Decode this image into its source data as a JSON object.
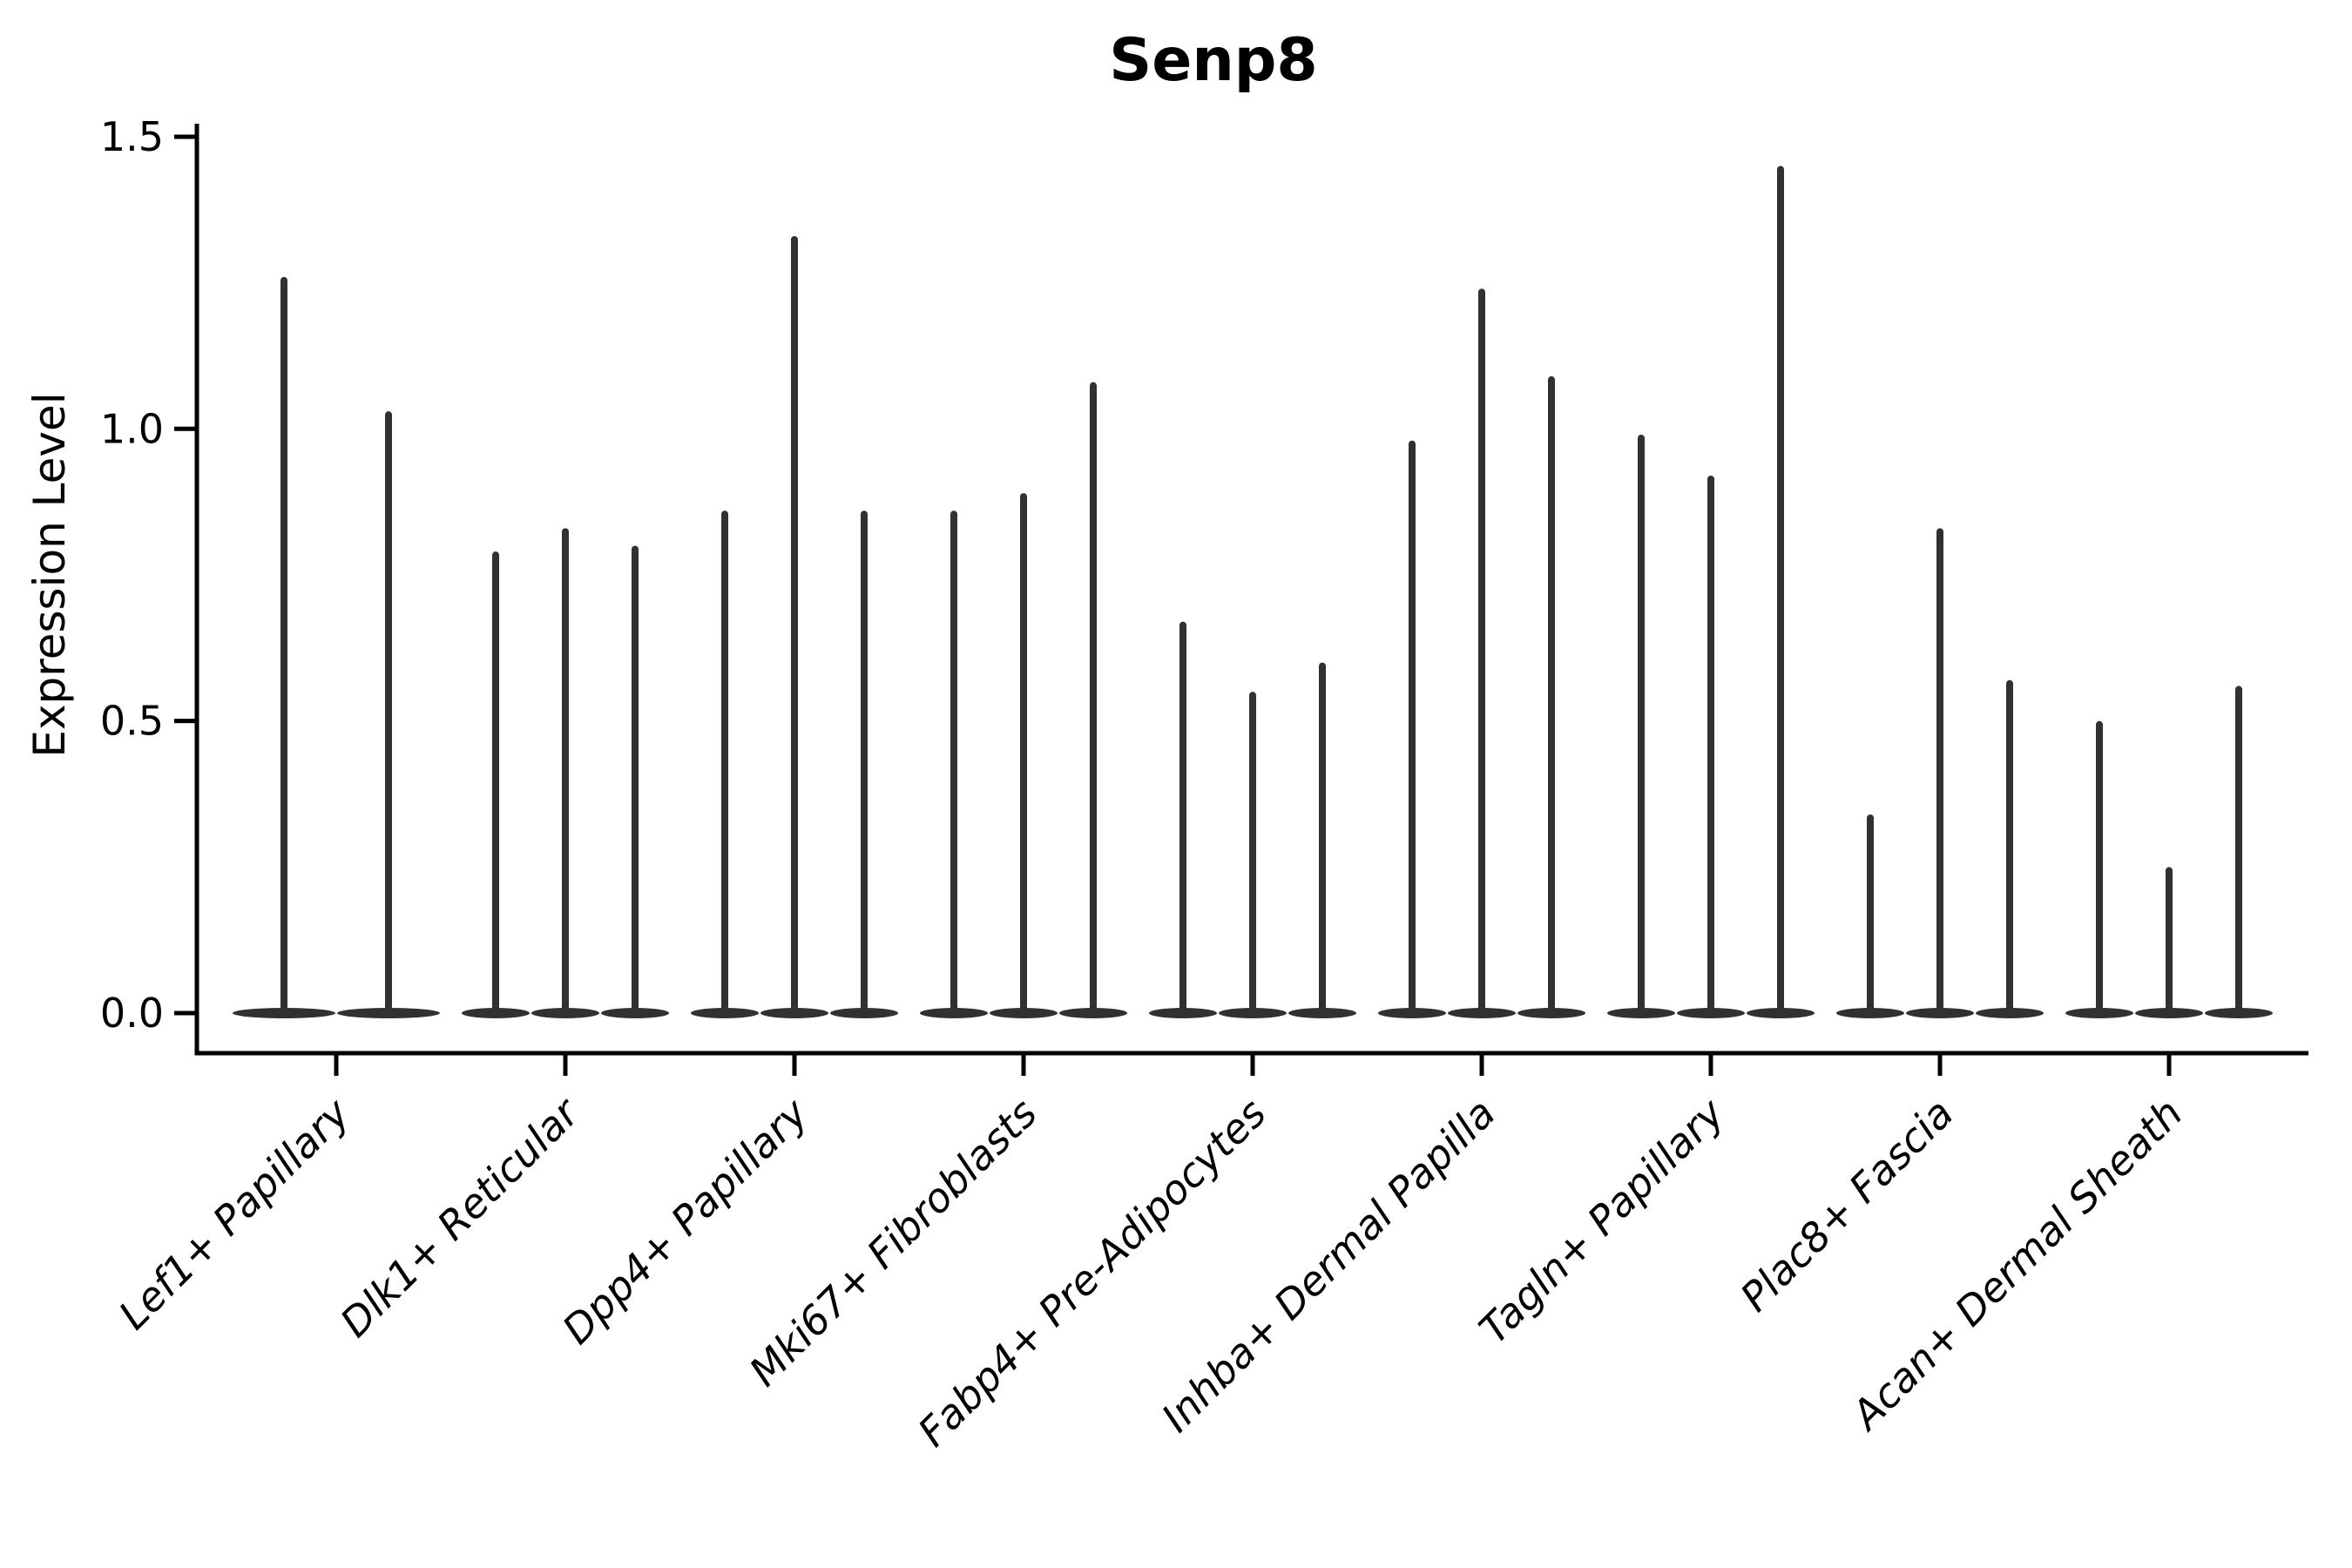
{
  "figure": {
    "title": "Senp8"
  },
  "chart_data": {
    "type": "violin",
    "title": "Senp8",
    "xlabel": "",
    "ylabel": "Expression Level",
    "yticks": [
      "0.0",
      "0.5",
      "1.0",
      "1.5"
    ],
    "ytick_values": [
      0.0,
      0.5,
      1.0,
      1.5
    ],
    "ylim": [
      -0.07,
      1.52
    ],
    "grid": false,
    "legend": "none",
    "style": "zero-inflated violins: wide flat density base at 0 with a thin spike up to the max expression value; 2-3 violins per cell-type category",
    "categories": [
      "Lef1+ Papillary",
      "Dlk1+ Reticular",
      "Dpp4+ Papillary",
      "Mki67+ Fibroblasts",
      "Fabp4+ Pre-Adipocytes",
      "Inhba+ Dermal Papilla",
      "Tagln+ Papillary",
      "Plac8+ Fascia",
      "Acan+ Dermal Sheath"
    ],
    "violin_max_values": [
      [
        1.26,
        1.03
      ],
      [
        0.79,
        0.83,
        0.8
      ],
      [
        0.86,
        1.33,
        0.86
      ],
      [
        0.86,
        0.89,
        1.08
      ],
      [
        0.67,
        0.55,
        0.6
      ],
      [
        0.98,
        1.24,
        1.09
      ],
      [
        0.99,
        0.92,
        1.45
      ],
      [
        0.34,
        0.83,
        0.57
      ],
      [
        0.5,
        0.25,
        0.56
      ]
    ],
    "colors": {
      "violin": "#313131",
      "text": "#000000",
      "background": "#ffffff"
    }
  }
}
